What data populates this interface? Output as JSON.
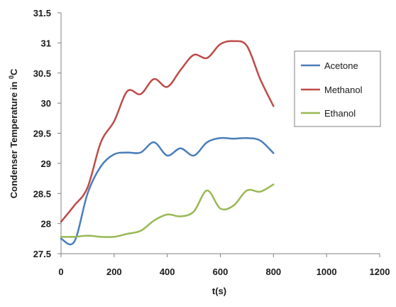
{
  "chart_data": {
    "type": "line",
    "title": "",
    "xlabel": "t(s)",
    "ylabel_main": "Condenser Temperature in ",
    "ylabel_sup": "0",
    "ylabel_unit": "C",
    "xlim": [
      0,
      1200
    ],
    "ylim": [
      27.5,
      31.5
    ],
    "x_ticks": [
      0,
      200,
      400,
      600,
      800,
      1000,
      1200
    ],
    "y_ticks": [
      27.5,
      28,
      28.5,
      29,
      29.5,
      30,
      30.5,
      31,
      31.5
    ],
    "x_tick_labels": [
      "0",
      "200",
      "400",
      "600",
      "800",
      "1000",
      "1200"
    ],
    "y_tick_labels": [
      "27.5",
      "28",
      "28.5",
      "29",
      "29.5",
      "30",
      "30.5",
      "31",
      "31.5"
    ],
    "grid": false,
    "legend_position": "right",
    "series": [
      {
        "name": "Acetone",
        "color": "#4a7ebb",
        "points": [
          [
            0,
            27.75
          ],
          [
            50,
            27.7
          ],
          [
            100,
            28.5
          ],
          [
            150,
            28.95
          ],
          [
            200,
            29.15
          ],
          [
            250,
            29.18
          ],
          [
            300,
            29.18
          ],
          [
            350,
            29.35
          ],
          [
            400,
            29.13
          ],
          [
            450,
            29.25
          ],
          [
            500,
            29.13
          ],
          [
            550,
            29.35
          ],
          [
            600,
            29.42
          ],
          [
            650,
            29.41
          ],
          [
            700,
            29.42
          ],
          [
            750,
            29.38
          ],
          [
            800,
            29.17
          ]
        ]
      },
      {
        "name": "Methanol",
        "color": "#be4b48",
        "points": [
          [
            0,
            28.03
          ],
          [
            50,
            28.3
          ],
          [
            100,
            28.6
          ],
          [
            150,
            29.35
          ],
          [
            200,
            29.7
          ],
          [
            250,
            30.2
          ],
          [
            300,
            30.15
          ],
          [
            350,
            30.4
          ],
          [
            400,
            30.27
          ],
          [
            450,
            30.55
          ],
          [
            500,
            30.8
          ],
          [
            550,
            30.75
          ],
          [
            600,
            30.98
          ],
          [
            650,
            31.03
          ],
          [
            700,
            30.95
          ],
          [
            750,
            30.4
          ],
          [
            800,
            29.95
          ]
        ]
      },
      {
        "name": "Ethanol",
        "color": "#98b954",
        "points": [
          [
            0,
            27.78
          ],
          [
            50,
            27.78
          ],
          [
            100,
            27.8
          ],
          [
            150,
            27.78
          ],
          [
            200,
            27.78
          ],
          [
            250,
            27.83
          ],
          [
            300,
            27.88
          ],
          [
            350,
            28.05
          ],
          [
            400,
            28.15
          ],
          [
            450,
            28.12
          ],
          [
            500,
            28.2
          ],
          [
            550,
            28.55
          ],
          [
            600,
            28.25
          ],
          [
            650,
            28.3
          ],
          [
            700,
            28.55
          ],
          [
            750,
            28.53
          ],
          [
            800,
            28.65
          ]
        ]
      }
    ]
  }
}
